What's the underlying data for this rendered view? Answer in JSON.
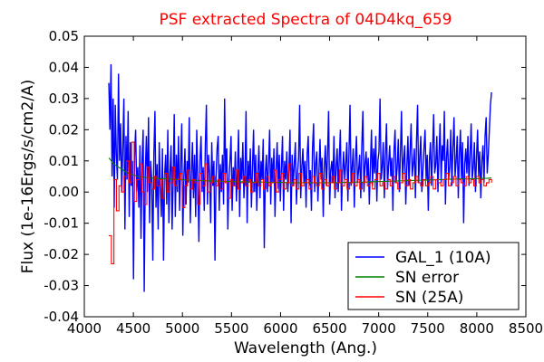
{
  "chart_data": {
    "type": "line",
    "title": "PSF extracted Spectra of 04D4kq_659",
    "title_color": "#ff0000",
    "xlabel": "Wavelength (Ang.)",
    "ylabel": "Flux (1e-16Ergs/s/cm2/A)",
    "xlim": [
      4000,
      8500
    ],
    "ylim": [
      -0.04,
      0.05
    ],
    "x_ticks": [
      4000,
      4500,
      5000,
      5500,
      6000,
      6500,
      7000,
      7500,
      8000,
      8500
    ],
    "x_tick_labels": [
      "4000",
      "4500",
      "5000",
      "5500",
      "6000",
      "6500",
      "7000",
      "7500",
      "8000",
      "8500"
    ],
    "y_ticks": [
      -0.04,
      -0.03,
      -0.02,
      -0.01,
      0.0,
      0.01,
      0.02,
      0.03,
      0.04,
      0.05
    ],
    "y_tick_labels": [
      "-0.04",
      "-0.03",
      "-0.02",
      "-0.01",
      "0.00",
      "0.01",
      "0.02",
      "0.03",
      "0.04",
      "0.05"
    ],
    "grid": false,
    "legend_position": "bottom-right",
    "series": [
      {
        "name": "GAL_1 (10A)",
        "color": "#0000ff",
        "step": 10,
        "x_start": 4250,
        "x_end": 8150,
        "values": [
          0.035,
          0.02,
          0.041,
          0.005,
          0.03,
          -0.005,
          0.028,
          0.012,
          0.004,
          0.038,
          0.01,
          0.022,
          0.0,
          0.014,
          0.03,
          -0.012,
          0.018,
          0.004,
          0.026,
          -0.008,
          0.016,
          0.002,
          0.01,
          -0.028,
          0.012,
          0.02,
          0.0,
          0.008,
          -0.005,
          0.015,
          -0.015,
          0.01,
          0.02,
          -0.032,
          0.006,
          0.018,
          0.0,
          0.024,
          -0.01,
          0.01,
          0.004,
          -0.022,
          0.012,
          0.026,
          -0.005,
          0.009,
          -0.012,
          0.016,
          0.002,
          -0.008,
          0.014,
          -0.022,
          0.005,
          0.012,
          -0.004,
          0.02,
          -0.01,
          0.006,
          0.015,
          -0.012,
          0.004,
          0.025,
          -0.008,
          0.012,
          0.0,
          0.018,
          -0.006,
          0.009,
          0.022,
          -0.014,
          0.005,
          0.014,
          -0.004,
          0.01,
          0.003,
          0.024,
          -0.01,
          0.006,
          0.016,
          -0.002,
          0.012,
          -0.008,
          0.02,
          0.004,
          -0.016,
          0.01,
          0.018,
          0.0,
          0.008,
          -0.006,
          0.015,
          0.028,
          -0.004,
          0.012,
          0.006,
          -0.01,
          0.016,
          0.002,
          0.01,
          -0.022,
          0.005,
          0.014,
          0.018,
          -0.006,
          0.009,
          0.0,
          0.012,
          -0.004,
          0.03,
          0.006,
          0.014,
          -0.012,
          0.004,
          0.01,
          0.018,
          -0.006,
          0.008,
          0.002,
          0.013,
          -0.003,
          0.007,
          0.02,
          -0.008,
          0.011,
          0.004,
          0.016,
          -0.002,
          0.006,
          0.026,
          -0.01,
          0.01,
          0.003,
          0.014,
          -0.005,
          0.008,
          0.02,
          0.0,
          0.012,
          -0.006,
          0.006,
          0.015,
          -0.002,
          0.01,
          0.004,
          0.017,
          -0.018,
          0.006,
          0.012,
          0.0,
          0.009,
          0.02,
          -0.004,
          0.011,
          0.003,
          0.014,
          -0.008,
          0.007,
          0.016,
          0.001,
          0.012,
          -0.003,
          0.008,
          0.018,
          -0.006,
          0.01,
          0.004,
          0.013,
          0.0,
          0.007,
          0.02,
          -0.01,
          0.012,
          0.002,
          0.009,
          0.016,
          -0.004,
          0.006,
          0.011,
          0.028,
          -0.002,
          0.008,
          0.014,
          0.003,
          0.01,
          -0.005,
          0.012,
          0.018,
          0.002,
          0.007,
          -0.006,
          0.014,
          0.022,
          0.0,
          0.009,
          0.013,
          -0.003,
          0.006,
          0.017,
          0.004,
          0.011,
          -0.008,
          0.008,
          0.015,
          0.002,
          0.012,
          0.026,
          -0.004,
          0.007,
          0.01,
          0.003,
          0.018,
          -0.002,
          0.008,
          0.014,
          0.0,
          0.011,
          0.02,
          -0.006,
          0.006,
          0.013,
          0.004,
          0.009,
          0.016,
          -0.003,
          0.012,
          0.028,
          0.002,
          0.008,
          0.014,
          -0.005,
          0.01,
          0.018,
          0.003,
          0.007,
          0.012,
          -0.002,
          0.015,
          0.026,
          0.0,
          0.009,
          0.013,
          0.004,
          0.011,
          -0.004,
          0.008,
          0.02,
          0.002,
          0.014,
          0.006,
          0.018,
          -0.003,
          0.01,
          0.013,
          0.03,
          0.004,
          0.008,
          0.016,
          -0.002,
          0.012,
          0.022,
          0.001,
          0.009,
          0.015,
          0.005,
          0.011,
          -0.006,
          0.013,
          0.02,
          0.003,
          0.008,
          0.017,
          0.0,
          0.012,
          0.026,
          0.004,
          0.01,
          0.015,
          -0.004,
          0.008,
          0.018,
          0.002,
          0.013,
          0.022,
          0.005,
          0.009,
          0.014,
          -0.002,
          0.016,
          0.028,
          0.003,
          0.011,
          0.018,
          0.0,
          0.007,
          0.014,
          0.02,
          0.004,
          0.012,
          -0.006,
          0.01,
          0.016,
          0.002,
          0.013,
          0.025,
          0.006,
          0.009,
          0.018,
          0.0,
          0.012,
          0.022,
          0.003,
          0.015,
          0.01,
          0.026,
          -0.004,
          0.011,
          0.017,
          0.004,
          0.008,
          0.02,
          0.002,
          0.014,
          0.024,
          0.005,
          0.01,
          0.018,
          -0.002,
          0.012,
          0.02,
          0.004,
          0.016,
          -0.01,
          0.009,
          0.014,
          0.006,
          0.018,
          0.002,
          0.012,
          0.022,
          0.004,
          0.008,
          0.016,
          0.0,
          0.011,
          0.02,
          0.005,
          0.013,
          -0.002,
          0.01,
          0.015,
          0.003,
          0.018,
          0.024,
          0.006,
          0.012,
          0.02,
          0.028,
          0.032
        ]
      },
      {
        "name": "SN error",
        "color": "#008000",
        "step": 50,
        "x_start": 4250,
        "x_end": 8150,
        "values": [
          0.011,
          0.009,
          0.008,
          0.007,
          0.006,
          0.0055,
          0.005,
          0.0048,
          0.0046,
          0.0045,
          0.0044,
          0.0043,
          0.0042,
          0.0041,
          0.004,
          0.004,
          0.0039,
          0.0038,
          0.0038,
          0.0037,
          0.0036,
          0.0036,
          0.0035,
          0.0035,
          0.0034,
          0.0034,
          0.0033,
          0.0033,
          0.0033,
          0.0032,
          0.0032,
          0.0032,
          0.0032,
          0.0031,
          0.0031,
          0.0031,
          0.0031,
          0.003,
          0.003,
          0.003,
          0.003,
          0.003,
          0.003,
          0.003,
          0.003,
          0.003,
          0.003,
          0.003,
          0.0031,
          0.0031,
          0.0031,
          0.0032,
          0.0032,
          0.0032,
          0.0033,
          0.0033,
          0.0034,
          0.0034,
          0.0035,
          0.0035,
          0.0036,
          0.0036,
          0.0037,
          0.0037,
          0.0038,
          0.0038,
          0.0039,
          0.0039,
          0.004,
          0.004,
          0.0041,
          0.0041,
          0.0042,
          0.0042,
          0.0042,
          0.0043,
          0.0043,
          0.0044,
          0.0044,
          0.0045
        ]
      },
      {
        "name": "SN (25A)",
        "color": "#ff0000",
        "step": 25,
        "x_start": 4250,
        "x_end": 8150,
        "values": [
          -0.014,
          -0.023,
          0.004,
          -0.006,
          0.002,
          0.0,
          0.005,
          0.01,
          0.003,
          0.016,
          -0.003,
          0.004,
          0.009,
          0.0,
          -0.004,
          0.008,
          0.003,
          0.001,
          0.005,
          0.002,
          0.004,
          -0.002,
          0.006,
          0.0,
          0.003,
          0.008,
          0.002,
          0.004,
          0.006,
          -0.005,
          0.002,
          0.007,
          0.001,
          0.004,
          0.003,
          -0.004,
          0.006,
          0.002,
          0.009,
          0.0,
          0.003,
          0.005,
          0.002,
          0.004,
          0.001,
          0.006,
          0.003,
          -0.002,
          0.004,
          0.002,
          0.007,
          0.001,
          0.003,
          0.005,
          0.002,
          0.004,
          0.0,
          0.003,
          0.006,
          0.002,
          0.004,
          0.001,
          0.005,
          0.002,
          0.003,
          0.007,
          0.0,
          0.004,
          0.006,
          0.001,
          0.003,
          0.009,
          0.002,
          0.004,
          0.001,
          0.006,
          0.002,
          0.003,
          0.004,
          0.001,
          0.005,
          0.003,
          0.002,
          0.006,
          0.001,
          0.004,
          0.002,
          0.003,
          0.005,
          0.001,
          0.003,
          0.007,
          0.002,
          0.004,
          0.001,
          0.003,
          0.006,
          0.002,
          0.004,
          0.001,
          0.003,
          0.005,
          0.002,
          0.003,
          0.001,
          0.004,
          0.006,
          0.002,
          0.003,
          0.001,
          0.004,
          0.002,
          0.005,
          0.003,
          0.001,
          0.003,
          0.006,
          0.002,
          0.004,
          0.001,
          0.003,
          0.005,
          0.003,
          0.002,
          0.004,
          0.002,
          0.003,
          0.005,
          0.001,
          0.004,
          0.003,
          0.002,
          0.004,
          0.006,
          0.002,
          0.003,
          0.005,
          0.002,
          0.004,
          0.003,
          0.002,
          0.005,
          0.003,
          0.004,
          0.002,
          0.005,
          0.003,
          0.004,
          0.002,
          0.003,
          0.004,
          0.003
        ]
      }
    ]
  }
}
